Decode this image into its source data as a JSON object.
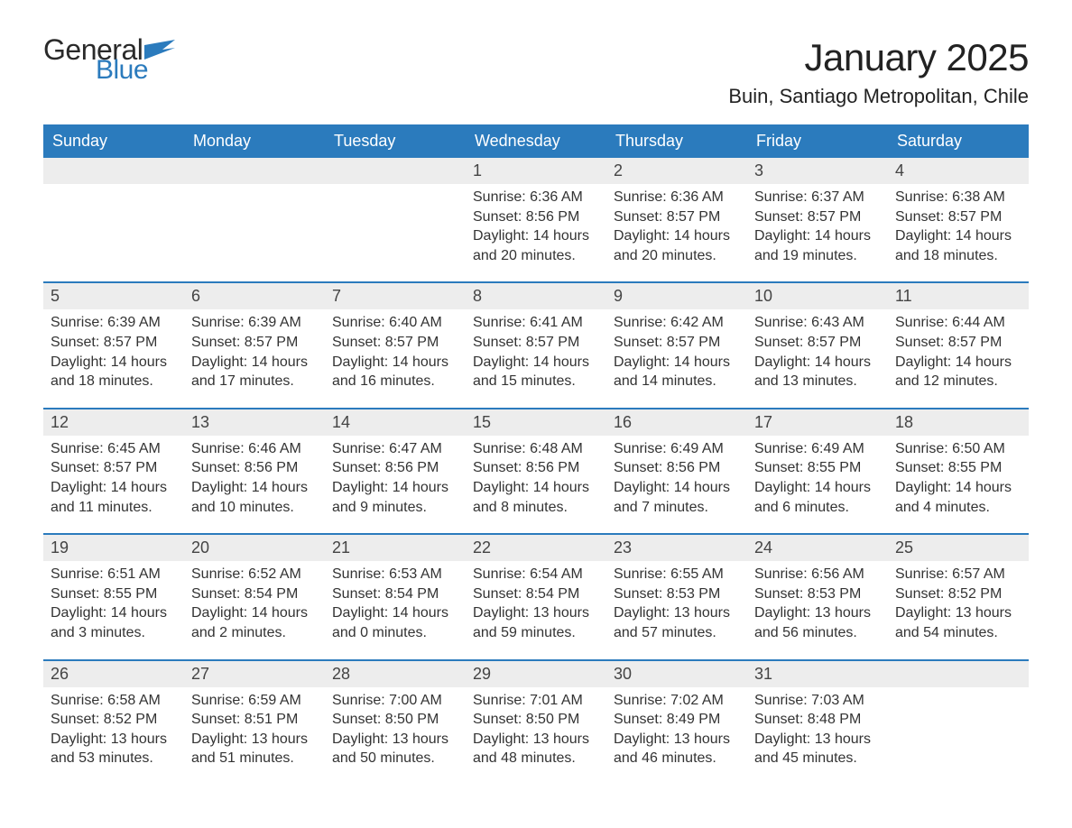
{
  "brand": {
    "general": "General",
    "blue": "Blue",
    "flag_color": "#2b7bbd"
  },
  "title": "January 2025",
  "location": "Buin, Santiago Metropolitan, Chile",
  "colors": {
    "header_bg": "#2b7bbd",
    "header_fg": "#ffffff",
    "band_bg": "#ededed",
    "text": "#333333",
    "rule": "#2b7bbd"
  },
  "typography": {
    "title_fontsize": 42,
    "location_fontsize": 22,
    "dow_fontsize": 18,
    "body_fontsize": 16
  },
  "layout": {
    "columns": 7,
    "blank_leading_cells": 3,
    "blank_trailing_cells": 1
  },
  "days_of_week": [
    "Sunday",
    "Monday",
    "Tuesday",
    "Wednesday",
    "Thursday",
    "Friday",
    "Saturday"
  ],
  "weeks": [
    [
      null,
      null,
      null,
      {
        "n": "1",
        "sunrise": "Sunrise: 6:36 AM",
        "sunset": "Sunset: 8:56 PM",
        "day1": "Daylight: 14 hours",
        "day2": "and 20 minutes."
      },
      {
        "n": "2",
        "sunrise": "Sunrise: 6:36 AM",
        "sunset": "Sunset: 8:57 PM",
        "day1": "Daylight: 14 hours",
        "day2": "and 20 minutes."
      },
      {
        "n": "3",
        "sunrise": "Sunrise: 6:37 AM",
        "sunset": "Sunset: 8:57 PM",
        "day1": "Daylight: 14 hours",
        "day2": "and 19 minutes."
      },
      {
        "n": "4",
        "sunrise": "Sunrise: 6:38 AM",
        "sunset": "Sunset: 8:57 PM",
        "day1": "Daylight: 14 hours",
        "day2": "and 18 minutes."
      }
    ],
    [
      {
        "n": "5",
        "sunrise": "Sunrise: 6:39 AM",
        "sunset": "Sunset: 8:57 PM",
        "day1": "Daylight: 14 hours",
        "day2": "and 18 minutes."
      },
      {
        "n": "6",
        "sunrise": "Sunrise: 6:39 AM",
        "sunset": "Sunset: 8:57 PM",
        "day1": "Daylight: 14 hours",
        "day2": "and 17 minutes."
      },
      {
        "n": "7",
        "sunrise": "Sunrise: 6:40 AM",
        "sunset": "Sunset: 8:57 PM",
        "day1": "Daylight: 14 hours",
        "day2": "and 16 minutes."
      },
      {
        "n": "8",
        "sunrise": "Sunrise: 6:41 AM",
        "sunset": "Sunset: 8:57 PM",
        "day1": "Daylight: 14 hours",
        "day2": "and 15 minutes."
      },
      {
        "n": "9",
        "sunrise": "Sunrise: 6:42 AM",
        "sunset": "Sunset: 8:57 PM",
        "day1": "Daylight: 14 hours",
        "day2": "and 14 minutes."
      },
      {
        "n": "10",
        "sunrise": "Sunrise: 6:43 AM",
        "sunset": "Sunset: 8:57 PM",
        "day1": "Daylight: 14 hours",
        "day2": "and 13 minutes."
      },
      {
        "n": "11",
        "sunrise": "Sunrise: 6:44 AM",
        "sunset": "Sunset: 8:57 PM",
        "day1": "Daylight: 14 hours",
        "day2": "and 12 minutes."
      }
    ],
    [
      {
        "n": "12",
        "sunrise": "Sunrise: 6:45 AM",
        "sunset": "Sunset: 8:57 PM",
        "day1": "Daylight: 14 hours",
        "day2": "and 11 minutes."
      },
      {
        "n": "13",
        "sunrise": "Sunrise: 6:46 AM",
        "sunset": "Sunset: 8:56 PM",
        "day1": "Daylight: 14 hours",
        "day2": "and 10 minutes."
      },
      {
        "n": "14",
        "sunrise": "Sunrise: 6:47 AM",
        "sunset": "Sunset: 8:56 PM",
        "day1": "Daylight: 14 hours",
        "day2": "and 9 minutes."
      },
      {
        "n": "15",
        "sunrise": "Sunrise: 6:48 AM",
        "sunset": "Sunset: 8:56 PM",
        "day1": "Daylight: 14 hours",
        "day2": "and 8 minutes."
      },
      {
        "n": "16",
        "sunrise": "Sunrise: 6:49 AM",
        "sunset": "Sunset: 8:56 PM",
        "day1": "Daylight: 14 hours",
        "day2": "and 7 minutes."
      },
      {
        "n": "17",
        "sunrise": "Sunrise: 6:49 AM",
        "sunset": "Sunset: 8:55 PM",
        "day1": "Daylight: 14 hours",
        "day2": "and 6 minutes."
      },
      {
        "n": "18",
        "sunrise": "Sunrise: 6:50 AM",
        "sunset": "Sunset: 8:55 PM",
        "day1": "Daylight: 14 hours",
        "day2": "and 4 minutes."
      }
    ],
    [
      {
        "n": "19",
        "sunrise": "Sunrise: 6:51 AM",
        "sunset": "Sunset: 8:55 PM",
        "day1": "Daylight: 14 hours",
        "day2": "and 3 minutes."
      },
      {
        "n": "20",
        "sunrise": "Sunrise: 6:52 AM",
        "sunset": "Sunset: 8:54 PM",
        "day1": "Daylight: 14 hours",
        "day2": "and 2 minutes."
      },
      {
        "n": "21",
        "sunrise": "Sunrise: 6:53 AM",
        "sunset": "Sunset: 8:54 PM",
        "day1": "Daylight: 14 hours",
        "day2": "and 0 minutes."
      },
      {
        "n": "22",
        "sunrise": "Sunrise: 6:54 AM",
        "sunset": "Sunset: 8:54 PM",
        "day1": "Daylight: 13 hours",
        "day2": "and 59 minutes."
      },
      {
        "n": "23",
        "sunrise": "Sunrise: 6:55 AM",
        "sunset": "Sunset: 8:53 PM",
        "day1": "Daylight: 13 hours",
        "day2": "and 57 minutes."
      },
      {
        "n": "24",
        "sunrise": "Sunrise: 6:56 AM",
        "sunset": "Sunset: 8:53 PM",
        "day1": "Daylight: 13 hours",
        "day2": "and 56 minutes."
      },
      {
        "n": "25",
        "sunrise": "Sunrise: 6:57 AM",
        "sunset": "Sunset: 8:52 PM",
        "day1": "Daylight: 13 hours",
        "day2": "and 54 minutes."
      }
    ],
    [
      {
        "n": "26",
        "sunrise": "Sunrise: 6:58 AM",
        "sunset": "Sunset: 8:52 PM",
        "day1": "Daylight: 13 hours",
        "day2": "and 53 minutes."
      },
      {
        "n": "27",
        "sunrise": "Sunrise: 6:59 AM",
        "sunset": "Sunset: 8:51 PM",
        "day1": "Daylight: 13 hours",
        "day2": "and 51 minutes."
      },
      {
        "n": "28",
        "sunrise": "Sunrise: 7:00 AM",
        "sunset": "Sunset: 8:50 PM",
        "day1": "Daylight: 13 hours",
        "day2": "and 50 minutes."
      },
      {
        "n": "29",
        "sunrise": "Sunrise: 7:01 AM",
        "sunset": "Sunset: 8:50 PM",
        "day1": "Daylight: 13 hours",
        "day2": "and 48 minutes."
      },
      {
        "n": "30",
        "sunrise": "Sunrise: 7:02 AM",
        "sunset": "Sunset: 8:49 PM",
        "day1": "Daylight: 13 hours",
        "day2": "and 46 minutes."
      },
      {
        "n": "31",
        "sunrise": "Sunrise: 7:03 AM",
        "sunset": "Sunset: 8:48 PM",
        "day1": "Daylight: 13 hours",
        "day2": "and 45 minutes."
      },
      null
    ]
  ]
}
